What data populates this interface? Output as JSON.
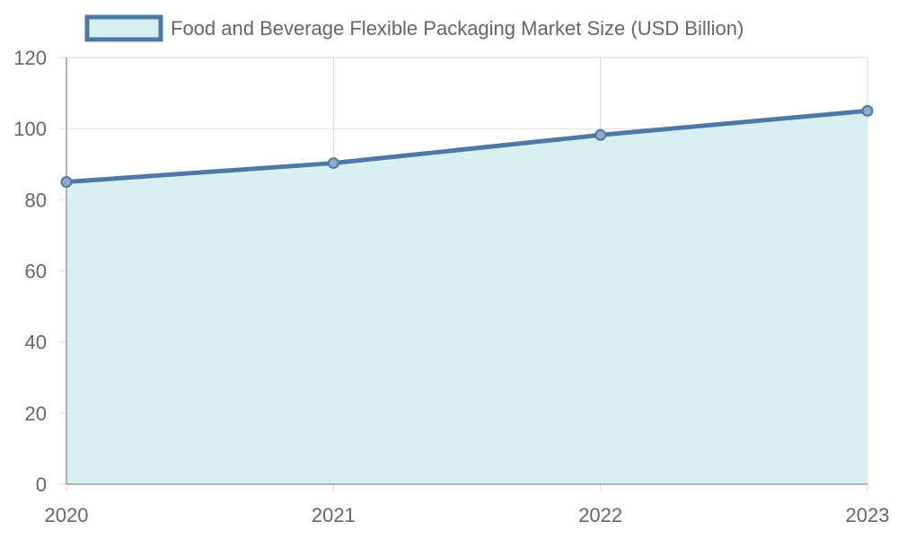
{
  "colors": {
    "line": "#4e79a7",
    "fill": "#d9f0f2",
    "grid": "#e0e0e0",
    "axis": "#999999",
    "text": "#666666"
  },
  "chart_data": {
    "type": "area",
    "x": [
      "2020",
      "2021",
      "2022",
      "2023"
    ],
    "series": [
      {
        "name": "Food and Beverage Flexible Packaging Market Size (USD Billion)",
        "values": [
          85,
          90.3,
          98.2,
          105
        ]
      }
    ],
    "ylim": [
      0,
      120
    ],
    "yticks": [
      0,
      20,
      40,
      60,
      80,
      100,
      120
    ],
    "grid": true,
    "legend_position": "top",
    "point_marker": "circle"
  }
}
